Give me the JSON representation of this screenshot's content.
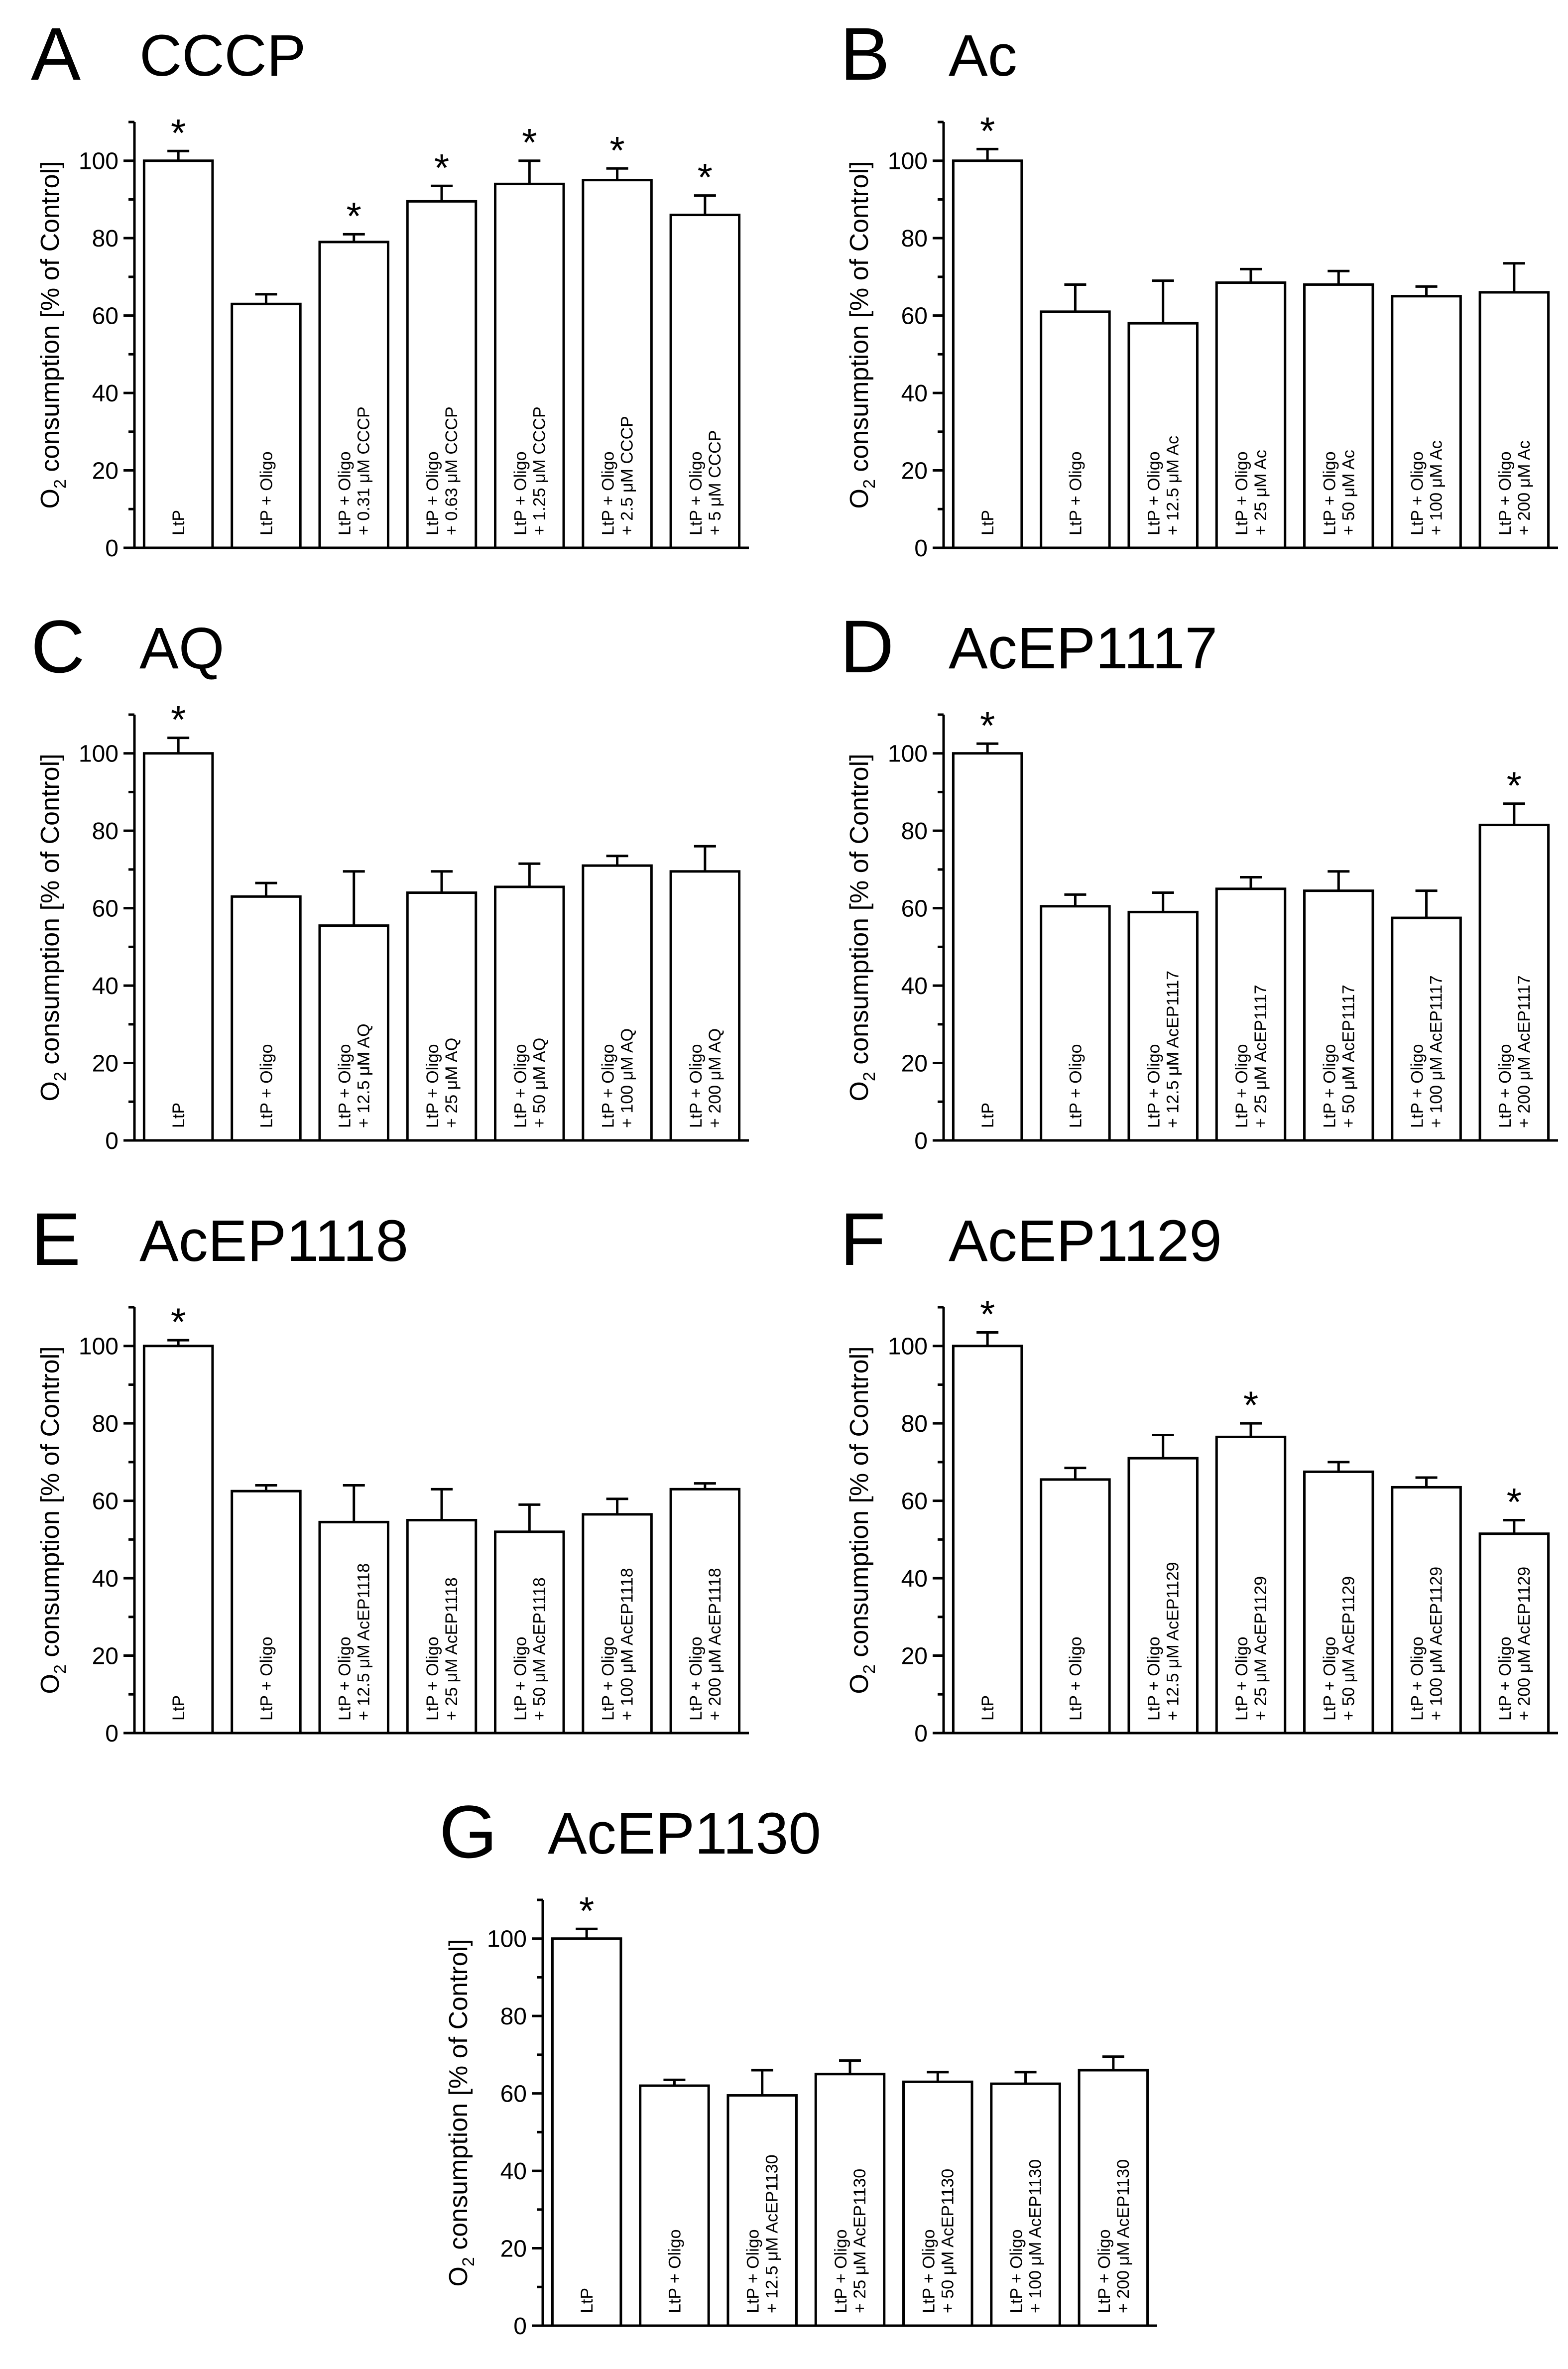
{
  "y_axis_label": {
    "pre": "O",
    "sub": "2",
    "post": " consumption  [% of Control]"
  },
  "chart_data": [
    {
      "type": "bar",
      "panel": "A",
      "title": "CCCP",
      "ylim": [
        0,
        110
      ],
      "yticks": [
        0,
        20,
        40,
        60,
        80,
        100
      ],
      "categories": [
        [
          "LtP"
        ],
        [
          "LtP + Oligo"
        ],
        [
          "LtP + Oligo",
          "+ 0.31 μM CCCP"
        ],
        [
          "LtP + Oligo",
          "+ 0.63 μM CCCP"
        ],
        [
          "LtP + Oligo",
          "+ 1.25 μM CCCP"
        ],
        [
          "LtP + Oligo",
          "+ 2.5 μM CCCP"
        ],
        [
          "LtP + Oligo",
          "+ 5 μM CCCP"
        ]
      ],
      "values": [
        100,
        63,
        79,
        89.5,
        94,
        95,
        86
      ],
      "errors": [
        2.5,
        2.5,
        2,
        4,
        6,
        3,
        5
      ],
      "significant": [
        true,
        false,
        true,
        true,
        true,
        true,
        true
      ]
    },
    {
      "type": "bar",
      "panel": "B",
      "title": "Ac",
      "ylim": [
        0,
        110
      ],
      "yticks": [
        0,
        20,
        40,
        60,
        80,
        100
      ],
      "categories": [
        [
          "LtP"
        ],
        [
          "LtP + Oligo"
        ],
        [
          "LtP + Oligo",
          "+ 12.5 μM Ac"
        ],
        [
          "LtP + Oligo",
          "+ 25 μM Ac"
        ],
        [
          "LtP + Oligo",
          "+ 50 μM Ac"
        ],
        [
          "LtP + Oligo",
          "+ 100 μM Ac"
        ],
        [
          "LtP + Oligo",
          "+ 200 μM Ac"
        ]
      ],
      "values": [
        100,
        61,
        58,
        68.5,
        68,
        65,
        66
      ],
      "errors": [
        3,
        7,
        11,
        3.5,
        3.5,
        2.5,
        7.5
      ],
      "significant": [
        true,
        false,
        false,
        false,
        false,
        false,
        false
      ]
    },
    {
      "type": "bar",
      "panel": "C",
      "title": "AQ",
      "ylim": [
        0,
        110
      ],
      "yticks": [
        0,
        20,
        40,
        60,
        80,
        100
      ],
      "categories": [
        [
          "LtP"
        ],
        [
          "LtP + Oligo"
        ],
        [
          "LtP + Oligo",
          "+ 12.5 μM AQ"
        ],
        [
          "LtP + Oligo",
          "+ 25 μM AQ"
        ],
        [
          "LtP + Oligo",
          "+ 50 μM AQ"
        ],
        [
          "LtP + Oligo",
          "+ 100 μM AQ"
        ],
        [
          "LtP + Oligo",
          "+ 200 μM AQ"
        ]
      ],
      "values": [
        100,
        63,
        55.5,
        64,
        65.5,
        71,
        69.5
      ],
      "errors": [
        4,
        3.5,
        14,
        5.5,
        6,
        2.5,
        6.5
      ],
      "significant": [
        true,
        false,
        false,
        false,
        false,
        false,
        false
      ]
    },
    {
      "type": "bar",
      "panel": "D",
      "title": "AcEP1117",
      "ylim": [
        0,
        110
      ],
      "yticks": [
        0,
        20,
        40,
        60,
        80,
        100
      ],
      "categories": [
        [
          "LtP"
        ],
        [
          "LtP + Oligo"
        ],
        [
          "LtP + Oligo",
          "+ 12.5 μM AcEP1117"
        ],
        [
          "LtP + Oligo",
          "+ 25 μM AcEP1117"
        ],
        [
          "LtP + Oligo",
          "+ 50 μM AcEP1117"
        ],
        [
          "LtP + Oligo",
          "+ 100 μM AcEP1117"
        ],
        [
          "LtP + Oligo",
          "+ 200 μM AcEP1117"
        ]
      ],
      "values": [
        100,
        60.5,
        59,
        65,
        64.5,
        57.5,
        81.5
      ],
      "errors": [
        2.5,
        3,
        5,
        3,
        5,
        7,
        5.5
      ],
      "significant": [
        true,
        false,
        false,
        false,
        false,
        false,
        true
      ]
    },
    {
      "type": "bar",
      "panel": "E",
      "title": "AcEP1118",
      "ylim": [
        0,
        110
      ],
      "yticks": [
        0,
        20,
        40,
        60,
        80,
        100
      ],
      "categories": [
        [
          "LtP"
        ],
        [
          "LtP + Oligo"
        ],
        [
          "LtP + Oligo",
          "+ 12.5 μM AcEP1118"
        ],
        [
          "LtP + Oligo",
          "+ 25 μM AcEP1118"
        ],
        [
          "LtP + Oligo",
          "+ 50 μM AcEP1118"
        ],
        [
          "LtP + Oligo",
          "+ 100 μM AcEP1118"
        ],
        [
          "LtP + Oligo",
          "+ 200 μM AcEP1118"
        ]
      ],
      "values": [
        100,
        62.5,
        54.5,
        55,
        52,
        56.5,
        63
      ],
      "errors": [
        1.5,
        1.5,
        9.5,
        8,
        7,
        4,
        1.5
      ],
      "significant": [
        true,
        false,
        false,
        false,
        false,
        false,
        false
      ]
    },
    {
      "type": "bar",
      "panel": "F",
      "title": "AcEP1129",
      "ylim": [
        0,
        110
      ],
      "yticks": [
        0,
        20,
        40,
        60,
        80,
        100
      ],
      "categories": [
        [
          "LtP"
        ],
        [
          "LtP + Oligo"
        ],
        [
          "LtP + Oligo",
          "+ 12.5 μM AcEP1129"
        ],
        [
          "LtP + Oligo",
          "+ 25 μM AcEP1129"
        ],
        [
          "LtP + Oligo",
          "+ 50 μM AcEP1129"
        ],
        [
          "LtP + Oligo",
          "+ 100 μM AcEP1129"
        ],
        [
          "LtP + Oligo",
          "+ 200 μM AcEP1129"
        ]
      ],
      "values": [
        100,
        65.5,
        71,
        76.5,
        67.5,
        63.5,
        51.5
      ],
      "errors": [
        3.5,
        3,
        6,
        3.5,
        2.5,
        2.5,
        3.5
      ],
      "significant": [
        true,
        false,
        false,
        true,
        false,
        false,
        true
      ]
    },
    {
      "type": "bar",
      "panel": "G",
      "title": "AcEP1130",
      "ylim": [
        0,
        110
      ],
      "yticks": [
        0,
        20,
        40,
        60,
        80,
        100
      ],
      "categories": [
        [
          "LtP"
        ],
        [
          "LtP + Oligo"
        ],
        [
          "LtP + Oligo",
          "+ 12.5 μM AcEP1130"
        ],
        [
          "LtP + Oligo",
          "+ 25 μM AcEP1130"
        ],
        [
          "LtP + Oligo",
          "+ 50 μM AcEP1130"
        ],
        [
          "LtP + Oligo",
          "+ 100 μM AcEP1130"
        ],
        [
          "LtP + Oligo",
          "+ 200 μM AcEP1130"
        ]
      ],
      "values": [
        100,
        62,
        59.5,
        65,
        63,
        62.5,
        66
      ],
      "errors": [
        2.5,
        1.5,
        6.5,
        3.5,
        2.5,
        3,
        3.5
      ],
      "significant": [
        true,
        false,
        false,
        false,
        false,
        false,
        false
      ]
    }
  ]
}
